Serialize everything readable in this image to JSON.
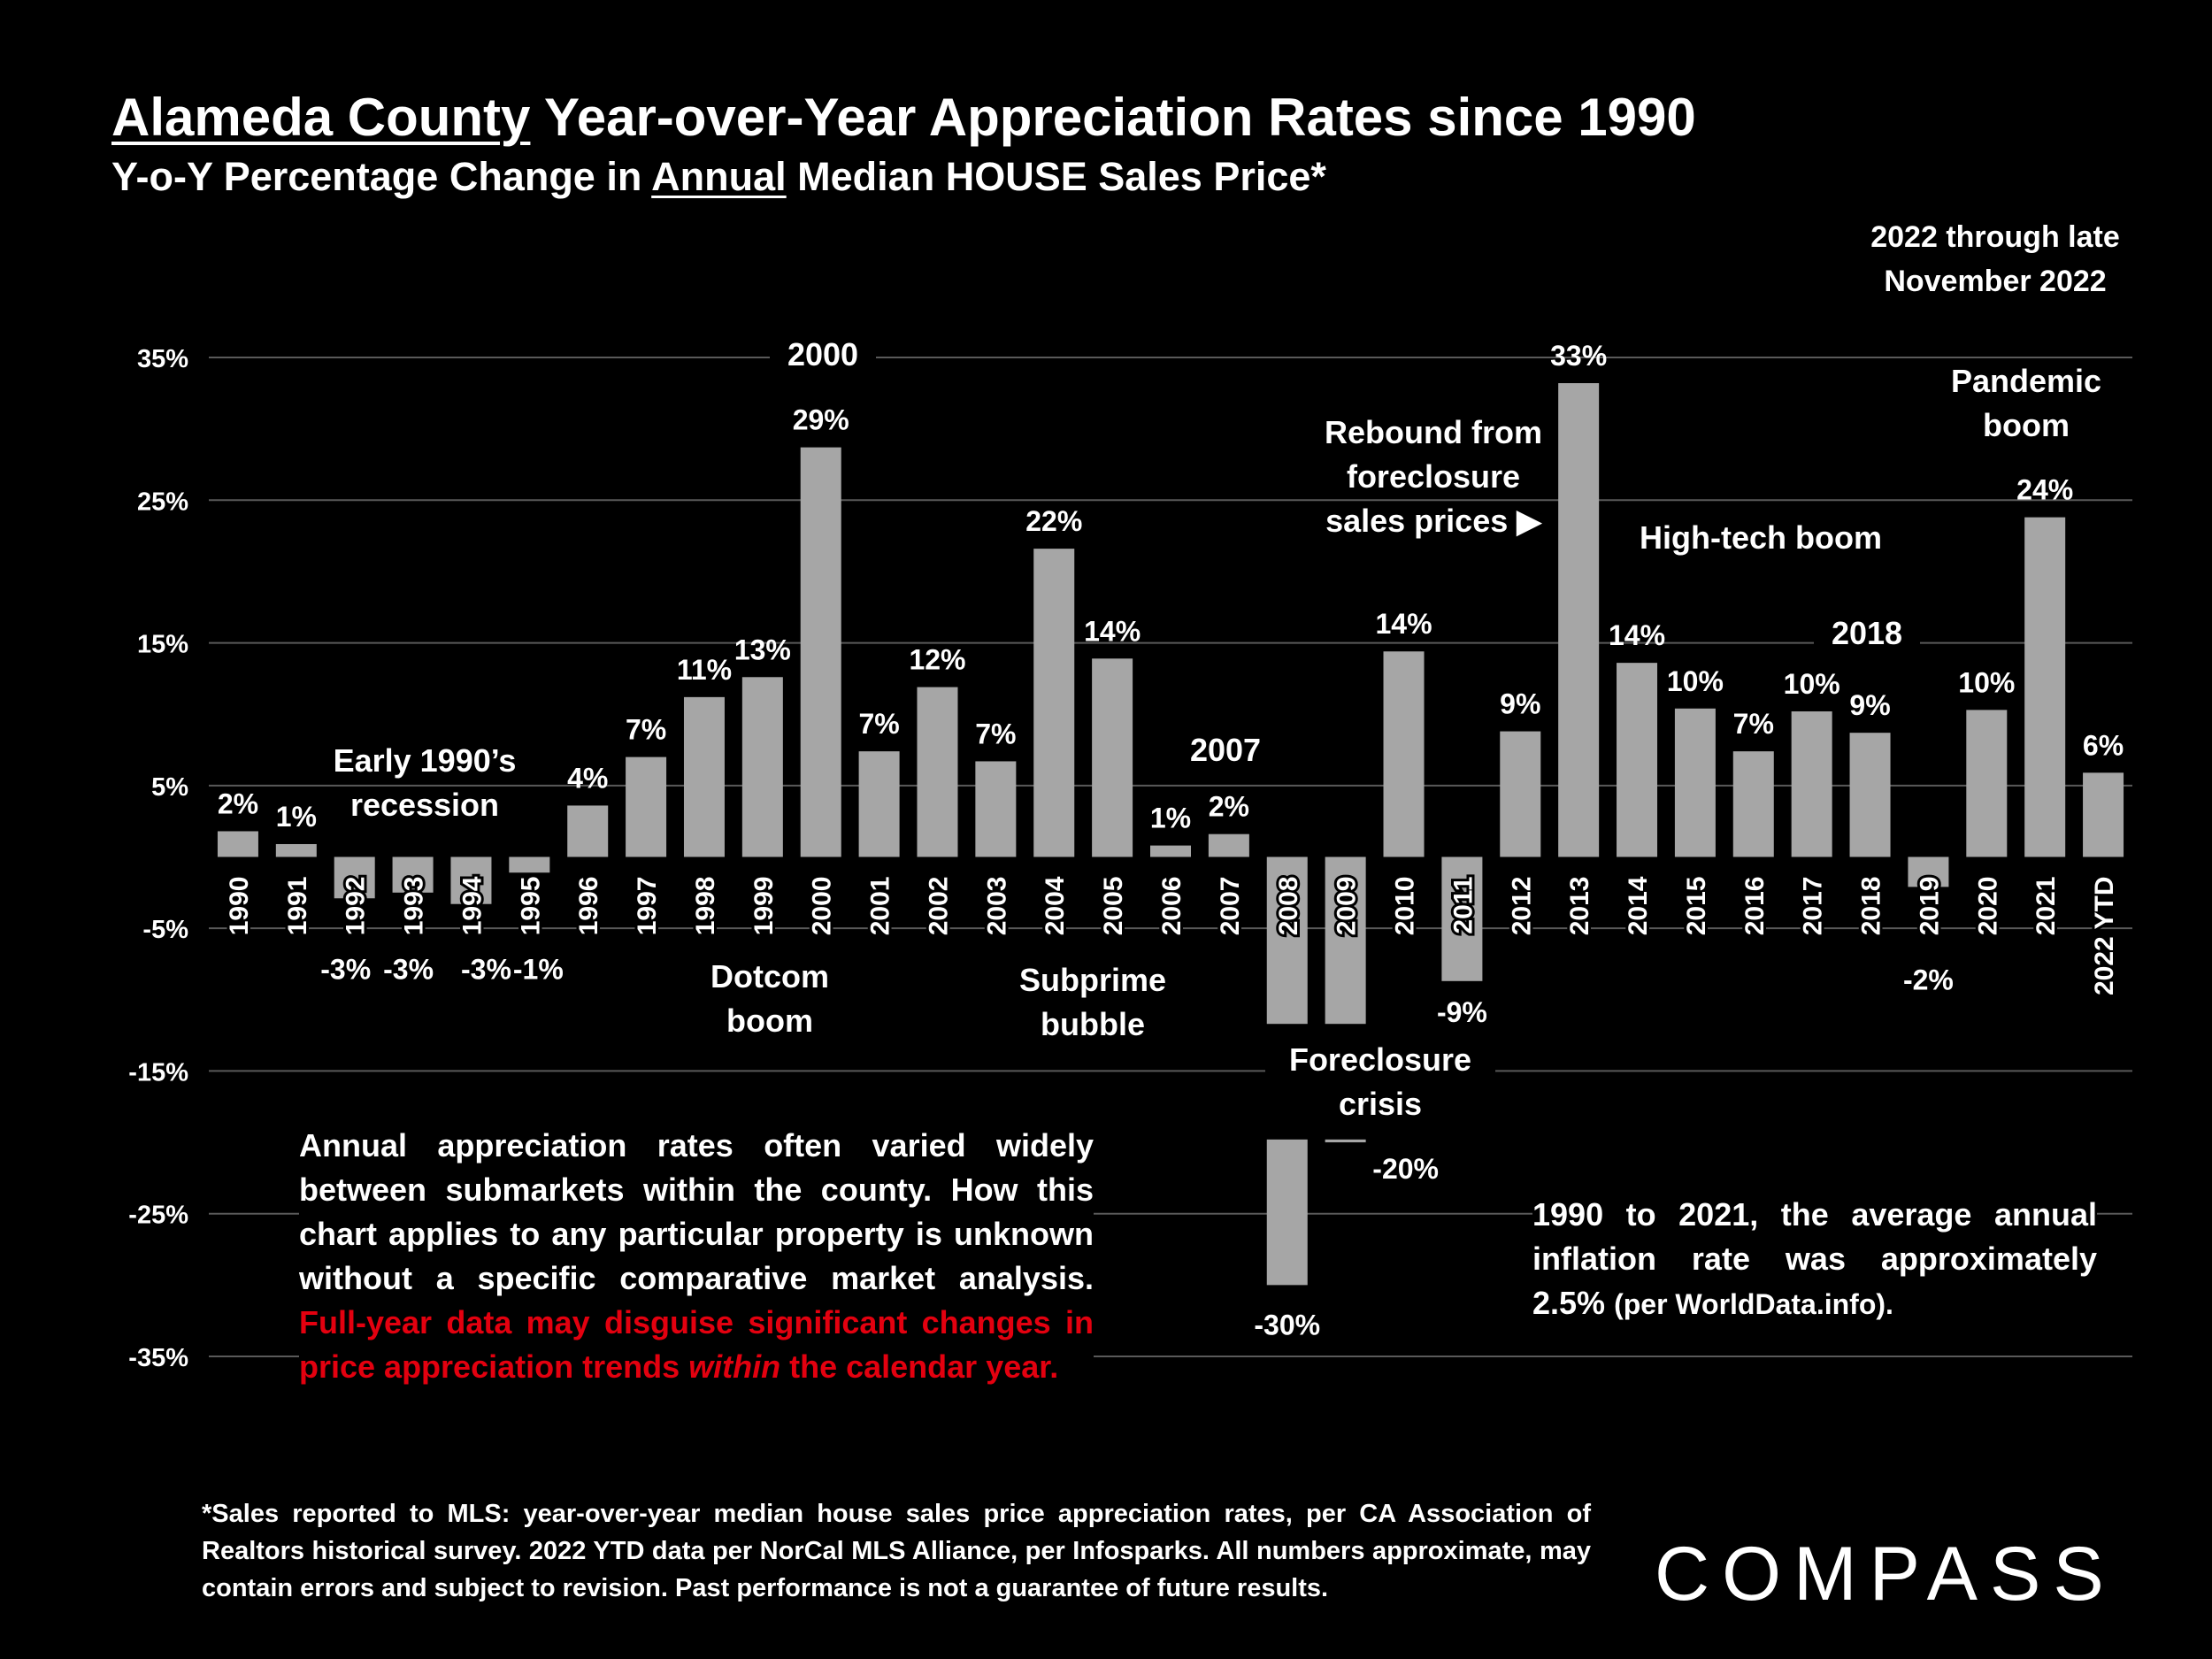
{
  "title": {
    "underlined": "Alameda County",
    "rest": " Year-over-Year Appreciation Rates since 1990"
  },
  "subtitle": {
    "before": "Y-o-Y Percentage Change in ",
    "underlined": "Annual",
    "after": " Median HOUSE Sales Price*"
  },
  "period_note_lines": [
    "2022 through late",
    "November 2022"
  ],
  "annotations": {
    "year_2000": "2000",
    "year_2007": "2007",
    "year_2018": "2018",
    "early_1990s": [
      "Early 1990’s",
      "recession"
    ],
    "dotcom": [
      "Dotcom",
      "boom"
    ],
    "subprime": [
      "Subprime",
      "bubble"
    ],
    "foreclosure": [
      "Foreclosure",
      "crisis"
    ],
    "rebound": [
      "Rebound from",
      "foreclosure",
      "sales prices ▶"
    ],
    "hightech": "High-tech boom",
    "pandemic": [
      "Pandemic",
      "boom"
    ]
  },
  "note_left": {
    "white": "Annual appreciation rates often varied widely between submarkets within the county. How this chart applies to any particular property is unknown without a specific comparative market analysis.",
    "red_before": "Full-year data may disguise significant changes in price appreciation trends ",
    "red_italic": "within",
    "red_after": " the calendar year."
  },
  "note_right": {
    "main": "1990 to 2021, the average annual inflation rate was approximately",
    "last_bold": "2.5% ",
    "last_small": "(per WorldData.info)."
  },
  "footnote": "*Sales reported to MLS: year-over-year median house sales price appreciation rates, per CA Association of Realtors historical survey. 2022 YTD data per NorCal MLS Alliance, per Infosparks. All numbers approximate, may contain errors and subject to revision. Past performance is not a guarantee of future results.",
  "logo": "COMPASS",
  "colors": {
    "background": "#000000",
    "bar": "#a6a6a6",
    "text": "#ffffff",
    "gridline": "#595959",
    "red_text": "#e3000f"
  },
  "chart_data": {
    "type": "bar",
    "ylim": [
      -35,
      35
    ],
    "yticks": [
      35,
      25,
      15,
      5,
      -5,
      -15,
      -25,
      -35
    ],
    "ytick_labels": [
      "35%",
      "25%",
      "15%",
      "5%",
      "-5%",
      "-15%",
      "-25%",
      "-35%"
    ],
    "grid": true,
    "categories": [
      "1990",
      "1991",
      "1992",
      "1993",
      "1994",
      "1995",
      "1996",
      "1997",
      "1998",
      "1999",
      "2000",
      "2001",
      "2002",
      "2003",
      "2004",
      "2005",
      "2006",
      "2007",
      "2008",
      "2009",
      "2010",
      "2011",
      "2012",
      "2013",
      "2014",
      "2015",
      "2016",
      "2017",
      "2018",
      "2019",
      "2020",
      "2021",
      "2022 YTD"
    ],
    "values": [
      1.8,
      0.9,
      -2.9,
      -2.5,
      -3.3,
      -1.1,
      3.6,
      7.0,
      11.2,
      12.6,
      28.7,
      7.4,
      11.9,
      6.7,
      21.6,
      13.9,
      0.8,
      1.6,
      -11.7,
      -11.7,
      14.4,
      -8.7,
      8.8,
      33.2,
      13.6,
      10.4,
      7.4,
      10.2,
      8.7,
      -2.1,
      10.3,
      23.8,
      5.9
    ],
    "data_labels": [
      "2%",
      "1%",
      "-3%",
      "-3%",
      "-3%",
      "-1%",
      "4%",
      "7%",
      "11%",
      "13%",
      "29%",
      "7%",
      "12%",
      "7%",
      "22%",
      "14%",
      "1%",
      "2%",
      "",
      "",
      "14%",
      "-9%",
      "9%",
      "33%",
      "14%",
      "10%",
      "7%",
      "10%",
      "9%",
      "-2%",
      "10%",
      "24%",
      "6%"
    ],
    "broken_bars": [
      {
        "category": "2008",
        "value": -30,
        "label": "-30%"
      },
      {
        "category": "2009",
        "value": -20,
        "label": "-20%"
      }
    ]
  }
}
